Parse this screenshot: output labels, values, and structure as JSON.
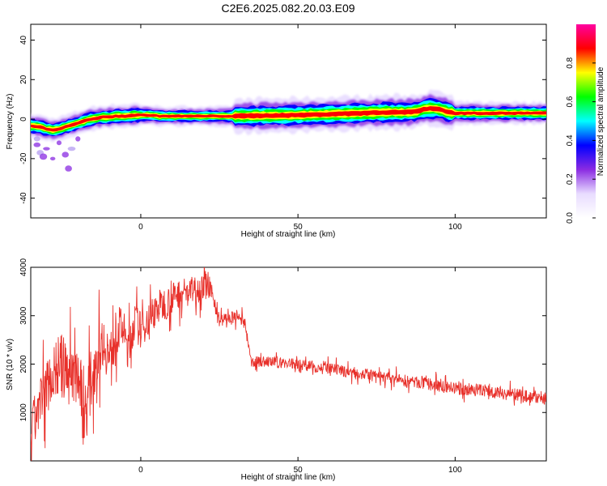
{
  "title": "C2E6.2025.082.20.03.E09",
  "chart_data": [
    {
      "type": "heatmap",
      "xlabel": "Height of straight line (km)",
      "ylabel": "Frequency (Hz)",
      "xlim": [
        -35,
        129
      ],
      "ylim": [
        -50,
        48
      ],
      "xticks": [
        0,
        50,
        100
      ],
      "yticks": [
        -40,
        -20,
        0,
        20,
        40
      ],
      "colorbar": {
        "label": "Normalized spectral amplitude",
        "range": [
          0,
          1
        ],
        "ticks": [
          0.0,
          0.2,
          0.4,
          0.6,
          0.8
        ],
        "colors": [
          "#ffffff",
          "#e8dcff",
          "#8a2be2",
          "#0000ff",
          "#00ffff",
          "#00ff00",
          "#ffff00",
          "#ff0000",
          "#ff00a0"
        ]
      },
      "ridge": {
        "x": [
          -34,
          -32,
          -30,
          -28,
          -26,
          -24,
          -22,
          -20,
          -18,
          -16,
          -14,
          -12,
          -10,
          -8,
          -5,
          -2,
          0,
          3,
          6,
          10,
          15,
          20,
          30,
          40,
          50,
          60,
          70,
          80,
          85,
          88,
          90,
          92,
          95,
          98,
          100,
          105,
          110,
          120,
          129
        ],
        "y": [
          -3.5,
          -4,
          -5,
          -5.5,
          -5,
          -4,
          -3,
          -2,
          -1,
          0,
          0.5,
          1,
          1,
          1.5,
          1.5,
          2,
          2,
          2,
          1.5,
          1.5,
          1.5,
          1.5,
          1.5,
          1.8,
          2,
          2.5,
          3,
          3.5,
          3.5,
          4,
          5,
          5.5,
          5,
          3.5,
          3,
          3,
          3,
          3,
          3
        ]
      },
      "scatter_blobs": [
        [
          -33,
          -10
        ],
        [
          -33,
          -13
        ],
        [
          -32,
          -17
        ],
        [
          -31,
          -19
        ],
        [
          -30,
          -15
        ],
        [
          -28,
          -20
        ],
        [
          -26,
          -12
        ],
        [
          -24,
          -18
        ],
        [
          -23,
          -25
        ],
        [
          -22,
          -15
        ],
        [
          -20,
          -10
        ]
      ]
    },
    {
      "type": "line",
      "xlabel": "Height of straight line (km)",
      "ylabel": "SNR (10 * v/v)",
      "xlim": [
        -35,
        129
      ],
      "ylim": [
        0,
        4000
      ],
      "xticks": [
        0,
        50,
        100
      ],
      "yticks": [
        1000,
        2000,
        3000,
        4000
      ],
      "color": "#e8302a",
      "envelope": {
        "x": [
          -35,
          -32,
          -29,
          -26,
          -23,
          -20,
          -18,
          -16,
          -14,
          -12,
          -10,
          -8,
          -6,
          -4,
          -2,
          0,
          3,
          6,
          9,
          12,
          15,
          18,
          21,
          23,
          25,
          28,
          31,
          33,
          35,
          40,
          50,
          60,
          70,
          80,
          90,
          100,
          110,
          120,
          129
        ],
        "y": [
          600,
          1200,
          1700,
          2000,
          1800,
          1900,
          900,
          1600,
          2200,
          2500,
          2100,
          2600,
          2800,
          2300,
          2900,
          2700,
          3000,
          3200,
          3300,
          3450,
          3500,
          3550,
          3600,
          3400,
          2900,
          2950,
          2950,
          2900,
          2050,
          2050,
          2000,
          1900,
          1800,
          1700,
          1600,
          1500,
          1450,
          1350,
          1300
        ]
      },
      "noise_amplitude": [
        [
          -35,
          900
        ],
        [
          -20,
          1400
        ],
        [
          -10,
          900
        ],
        [
          0,
          700
        ],
        [
          20,
          500
        ],
        [
          25,
          250
        ],
        [
          35,
          200
        ],
        [
          129,
          250
        ]
      ]
    }
  ]
}
